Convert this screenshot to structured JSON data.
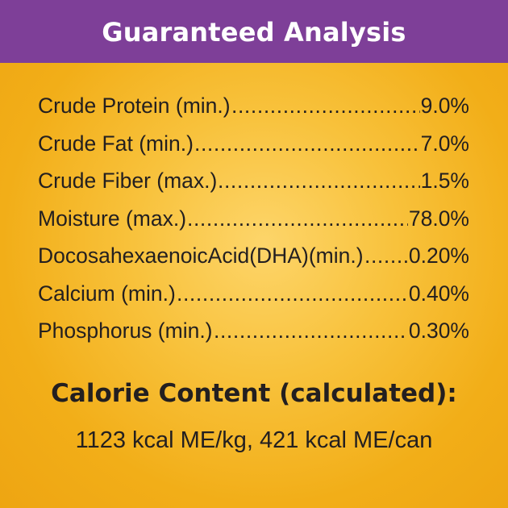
{
  "header": {
    "title": "Guaranteed Analysis"
  },
  "analysis": {
    "rows": [
      {
        "label": "Crude Protein (min.)",
        "value": "9.0%"
      },
      {
        "label": "Crude Fat (min.)",
        "value": "7.0%"
      },
      {
        "label": "Crude Fiber (max.)",
        "value": "1.5%"
      },
      {
        "label": "Moisture (max.)",
        "value": "78.0%"
      },
      {
        "label": "DocosahexaenoicAcid(DHA)(min.)",
        "value": "0.20%"
      },
      {
        "label": "Calcium (min.)",
        "value": "0.40%"
      },
      {
        "label": "Phosphorus (min.)",
        "value": "0.30%"
      }
    ]
  },
  "calorie": {
    "title": "Calorie Content (calculated):",
    "value": "1123 kcal ME/kg, 421 kcal ME/can"
  },
  "colors": {
    "header_bg": "#7e3f98",
    "panel_bg": "#f5b52a",
    "text": "#231f20",
    "header_text": "#ffffff"
  }
}
